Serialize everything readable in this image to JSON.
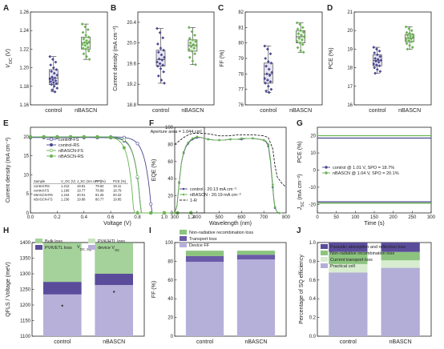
{
  "colors": {
    "control": "#4b4891",
    "nbascn": "#6ab352",
    "control_light": "#9d9ac8",
    "nbascn_light": "#b5dba7",
    "bulk": "#a4d29a",
    "pvk_etl": "#5b4c9b",
    "pvk_htl": "#c9e5bf",
    "device_voc": "#b7b0d9",
    "nonrad": "#8cc47f",
    "transport": "#6a5aa7",
    "device_ff": "#b5b0da",
    "parasitic": "#5b4c9b",
    "current_transport": "#d8ecd0",
    "practical": "#b3aed7"
  },
  "chart_data": [
    {
      "panel": "A",
      "type": "box",
      "ylabel": "V_OC (V)",
      "ylim": [
        1.16,
        1.26
      ],
      "yticks": [
        "1.16",
        "1.18",
        "1.20",
        "1.22",
        "1.24",
        "1.26"
      ],
      "categories": [
        "control",
        "nBASCN"
      ],
      "series": [
        {
          "category": "control",
          "stats": {
            "min": 1.174,
            "q1": 1.182,
            "median": 1.189,
            "q3": 1.198,
            "max": 1.212
          },
          "points": [
            1.212,
            1.209,
            1.206,
            1.203,
            1.2,
            1.198,
            1.196,
            1.194,
            1.192,
            1.19,
            1.189,
            1.188,
            1.187,
            1.186,
            1.185,
            1.184,
            1.183,
            1.182,
            1.18,
            1.178,
            1.176,
            1.174
          ]
        },
        {
          "category": "nBASCN",
          "stats": {
            "min": 1.209,
            "q1": 1.22,
            "median": 1.227,
            "q3": 1.233,
            "max": 1.247
          },
          "points": [
            1.247,
            1.244,
            1.241,
            1.238,
            1.235,
            1.233,
            1.231,
            1.229,
            1.228,
            1.227,
            1.226,
            1.225,
            1.224,
            1.222,
            1.221,
            1.22,
            1.218,
            1.215,
            1.212,
            1.209
          ]
        }
      ]
    },
    {
      "panel": "B",
      "type": "box",
      "ylabel": "Current density (mA cm⁻²)",
      "ylim": [
        18.8,
        20.6
      ],
      "yticks": [
        "18.8",
        "19.2",
        "19.6",
        "20.0",
        "20.4"
      ],
      "categories": [
        "control",
        "nBASCN"
      ],
      "series": [
        {
          "category": "control",
          "stats": {
            "min": 19.22,
            "q1": 19.55,
            "median": 19.68,
            "q3": 19.86,
            "max": 20.28
          },
          "points": [
            20.28,
            20.2,
            20.1,
            19.98,
            19.9,
            19.86,
            19.82,
            19.77,
            19.72,
            19.69,
            19.67,
            19.63,
            19.6,
            19.57,
            19.55,
            19.5,
            19.44,
            19.36,
            19.28,
            19.22
          ]
        },
        {
          "category": "nBASCN",
          "stats": {
            "min": 19.58,
            "q1": 19.84,
            "median": 19.95,
            "q3": 20.06,
            "max": 20.3
          },
          "points": [
            20.3,
            20.22,
            20.15,
            20.09,
            20.06,
            20.03,
            20.0,
            19.97,
            19.95,
            19.93,
            19.9,
            19.87,
            19.84,
            19.79,
            19.72,
            19.65,
            19.58
          ]
        }
      ]
    },
    {
      "panel": "C",
      "type": "box",
      "ylabel": "FF (%)",
      "ylim": [
        76,
        82
      ],
      "yticks": [
        "76",
        "77",
        "78",
        "79",
        "80",
        "81",
        "82"
      ],
      "categories": [
        "control",
        "nBASCN"
      ],
      "series": [
        {
          "category": "control",
          "stats": {
            "min": 76.8,
            "q1": 77.4,
            "median": 78.0,
            "q3": 78.7,
            "max": 79.8
          },
          "points": [
            79.8,
            79.6,
            79.3,
            79.0,
            78.8,
            78.7,
            78.5,
            78.3,
            78.1,
            78.0,
            77.9,
            77.7,
            77.6,
            77.5,
            77.4,
            77.2,
            77.0,
            76.9,
            76.8
          ]
        },
        {
          "category": "nBASCN",
          "stats": {
            "min": 79.4,
            "q1": 80.0,
            "median": 80.4,
            "q3": 80.8,
            "max": 81.3
          },
          "points": [
            81.3,
            81.2,
            81.0,
            80.9,
            80.8,
            80.7,
            80.6,
            80.5,
            80.4,
            80.3,
            80.2,
            80.1,
            80.0,
            79.9,
            79.7,
            79.5,
            79.4
          ]
        }
      ]
    },
    {
      "panel": "D",
      "type": "box",
      "ylabel": "PCE (%)",
      "ylim": [
        16,
        21
      ],
      "yticks": [
        "16",
        "17",
        "18",
        "19",
        "20",
        "21"
      ],
      "categories": [
        "control",
        "nBASCN"
      ],
      "series": [
        {
          "category": "control",
          "stats": {
            "min": 17.7,
            "q1": 18.1,
            "median": 18.4,
            "q3": 18.7,
            "max": 19.1
          },
          "points": [
            19.1,
            19.0,
            18.9,
            18.8,
            18.7,
            18.6,
            18.5,
            18.45,
            18.4,
            18.35,
            18.3,
            18.2,
            18.15,
            18.1,
            18.0,
            17.9,
            17.8,
            17.7
          ]
        },
        {
          "category": "nBASCN",
          "stats": {
            "min": 19.0,
            "q1": 19.4,
            "median": 19.6,
            "q3": 19.8,
            "max": 20.2
          },
          "points": [
            20.2,
            20.1,
            20.0,
            19.9,
            19.85,
            19.8,
            19.75,
            19.7,
            19.65,
            19.6,
            19.55,
            19.5,
            19.45,
            19.4,
            19.3,
            19.2,
            19.1,
            19.0
          ]
        }
      ]
    },
    {
      "panel": "E",
      "type": "line",
      "xlabel": "Voltage (V)",
      "ylabel": "Current density (mA cm⁻²)",
      "xlim": [
        0,
        1.3
      ],
      "ylim": [
        0,
        22.5
      ],
      "xticks": [
        "0.0",
        "0.2",
        "0.4",
        "0.6",
        "0.8",
        "1.0",
        "1.2"
      ],
      "yticks": [
        "0",
        "5",
        "10",
        "15",
        "20"
      ],
      "annotation": "Aperture area = 1.044 cm²",
      "series": [
        {
          "name": "control-FS",
          "color": "#4b4891",
          "marker": "open",
          "jsc": 20.0,
          "voc": 1.189,
          "n": 1.7
        },
        {
          "name": "control-RS",
          "color": "#4b4891",
          "marker": "filled",
          "jsc": 19.8,
          "voc": 1.212,
          "n": 1.55
        },
        {
          "name": "nBASCN-FS",
          "color": "#6ab352",
          "marker": "open",
          "jsc": 20.0,
          "voc": 1.236,
          "n": 1.55
        },
        {
          "name": "nBASCN-RS",
          "color": "#6ab352",
          "marker": "filled",
          "jsc": 20.0,
          "voc": 1.244,
          "n": 1.45
        }
      ],
      "table": {
        "headers": [
          "Sample",
          "V_OC (V)",
          "J_SC (mA cm⁻²)",
          "FF (%)",
          "PCE (%)"
        ],
        "rows": [
          [
            "control-RS",
            "1.212",
            "19.81",
            "79.62",
            "19.11"
          ],
          [
            "control-FS",
            "1.189",
            "19.77",
            "78.89",
            "18.79"
          ],
          [
            "nBASCN-RS",
            "1.244",
            "20.01",
            "81.25",
            "20.22"
          ],
          [
            "nBASCN-FS",
            "1.236",
            "19.88",
            "80.77",
            "19.85"
          ]
        ]
      }
    },
    {
      "panel": "F",
      "type": "line",
      "xlabel": "Wavelength (nm)",
      "ylabel": "EQE (%)",
      "xlim": [
        300,
        800
      ],
      "ylim": [
        0,
        100
      ],
      "xticks": [
        "300",
        "400",
        "500",
        "600",
        "700",
        "800"
      ],
      "yticks": [
        "0",
        "20",
        "40",
        "60",
        "80",
        "100"
      ],
      "series": [
        {
          "name": "control - 20.13 mA cm⁻²",
          "color": "#4b4891",
          "dash": false,
          "x": [
            300,
            310,
            320,
            330,
            340,
            350,
            360,
            370,
            380,
            390,
            400,
            420,
            450,
            480,
            500,
            520,
            550,
            580,
            600,
            620,
            650,
            680,
            700,
            710,
            720,
            730,
            740,
            745,
            750,
            760,
            770,
            780
          ],
          "y": [
            0,
            8,
            35,
            58,
            70,
            77,
            81,
            84,
            86,
            87,
            88,
            88,
            86,
            85,
            85,
            85,
            86,
            86,
            86,
            87,
            87,
            86,
            85,
            83,
            78,
            60,
            30,
            15,
            6,
            1,
            0,
            0
          ]
        },
        {
          "name": "nBASCN - 20.19 mA cm⁻²",
          "color": "#6ab352",
          "dash": false,
          "x": [
            300,
            310,
            320,
            330,
            340,
            350,
            360,
            370,
            380,
            390,
            400,
            420,
            450,
            480,
            500,
            520,
            550,
            580,
            600,
            620,
            650,
            680,
            700,
            710,
            720,
            730,
            740,
            745,
            750,
            760,
            770,
            780
          ],
          "y": [
            0,
            9,
            36,
            59,
            71,
            78,
            82,
            85,
            87,
            88,
            89,
            88,
            86,
            85,
            85,
            85,
            86,
            86,
            87,
            87,
            87,
            86,
            85,
            84,
            80,
            63,
            33,
            17,
            7,
            1,
            0,
            0
          ]
        },
        {
          "name": "1-R",
          "color": "#222222",
          "dash": true,
          "x": [
            300,
            320,
            340,
            360,
            380,
            400,
            430,
            460,
            500,
            540,
            580,
            620,
            660,
            700,
            720,
            740,
            750,
            760,
            780,
            800
          ],
          "y": [
            80,
            84,
            88,
            91,
            93,
            93,
            93,
            92,
            90,
            90,
            91,
            91,
            91,
            90,
            88,
            75,
            55,
            42,
            35,
            30
          ]
        }
      ]
    },
    {
      "panel": "G",
      "type": "line",
      "xlabel": "Time (s)",
      "ylabel_top": "PCE (%)",
      "ylabel_bottom": "J_SC (mA cm⁻²)",
      "xlim": [
        0,
        300
      ],
      "xticks": [
        "0",
        "50",
        "100",
        "150",
        "200",
        "250",
        "300"
      ],
      "yticks_top": [
        "0",
        "10",
        "20"
      ],
      "yticks_bottom": [
        "-10",
        "-20"
      ],
      "series": [
        {
          "name": "control @ 1.01 V, SPO = 18.7%",
          "color": "#4b4891",
          "pce": 18.7,
          "jsc": -18.5
        },
        {
          "name": "nBASCN @ 1.04 V, SPO = 20.1%",
          "color": "#6ab352",
          "pce": 20.1,
          "jsc": -19.3
        }
      ]
    },
    {
      "panel": "H",
      "type": "stacked_bar",
      "ylabel": "QFLS / Voltage (meV)",
      "ylim": [
        1100,
        1400
      ],
      "yticks": [
        "1100",
        "1150",
        "1200",
        "1250",
        "1300",
        "1350",
        "1400"
      ],
      "limit_label": "V_OC, SQ",
      "categories": [
        "control",
        "nBASCN"
      ],
      "marker": "*",
      "legend": [
        "Bulk loss",
        "PVK/ETL loss",
        "PVK/HTL loss",
        "device V_OC"
      ],
      "stacks": [
        {
          "category": "control",
          "device_voc": 1234,
          "pvk_htl": 0,
          "pvk_etl": 40,
          "bulk": 126
        },
        {
          "category": "nBASCN",
          "device_voc": 1264,
          "pvk_htl": 0,
          "pvk_etl": 36,
          "bulk": 100
        }
      ]
    },
    {
      "panel": "I",
      "type": "stacked_bar",
      "ylabel": "FF (%)",
      "ylim": [
        0,
        100
      ],
      "yticks": [
        "0",
        "20",
        "40",
        "60",
        "80",
        "100"
      ],
      "categories": [
        "control",
        "nBASCN"
      ],
      "legend": [
        "Non-radiative recombination loss",
        "Transport loss",
        "Device FF"
      ],
      "stacks": [
        {
          "category": "control",
          "device_ff": 79.4,
          "transport": 6.1,
          "nonrad": 5.8
        },
        {
          "category": "nBASCN",
          "device_ff": 81.9,
          "transport": 5.1,
          "nonrad": 4.3
        }
      ]
    },
    {
      "panel": "J",
      "type": "stacked_bar",
      "ylabel": "Percentage of SQ efficiency",
      "ylim": [
        0,
        1
      ],
      "yticks": [
        "0.0",
        "0.2",
        "0.4",
        "0.6",
        "0.8",
        "1.0"
      ],
      "categories": [
        "control",
        "nBASCN"
      ],
      "legend": [
        "Parasitic absorption and reflection loss",
        "Non-radiative recombination loss",
        "Current transport loss",
        "Practical cell"
      ],
      "stacks": [
        {
          "category": "control",
          "practical": 0.68,
          "current_transport": 0.09,
          "nonrad": 0.13,
          "parasitic": 0.1
        },
        {
          "category": "nBASCN",
          "practical": 0.73,
          "current_transport": 0.08,
          "nonrad": 0.09,
          "parasitic": 0.1
        }
      ]
    }
  ]
}
